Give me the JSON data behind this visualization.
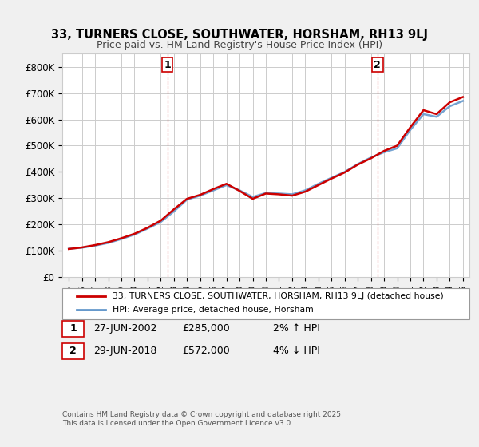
{
  "title1": "33, TURNERS CLOSE, SOUTHWATER, HORSHAM, RH13 9LJ",
  "title2": "Price paid vs. HM Land Registry's House Price Index (HPI)",
  "bg_color": "#f0f0f0",
  "plot_bg_color": "#ffffff",
  "grid_color": "#cccccc",
  "red_color": "#cc0000",
  "blue_color": "#6699cc",
  "legend_label_red": "33, TURNERS CLOSE, SOUTHWATER, HORSHAM, RH13 9LJ (detached house)",
  "legend_label_blue": "HPI: Average price, detached house, Horsham",
  "annotation1_label": "1",
  "annotation1_date": "27-JUN-2002",
  "annotation1_price": "£285,000",
  "annotation1_hpi": "2% ↑ HPI",
  "annotation2_label": "2",
  "annotation2_date": "29-JUN-2018",
  "annotation2_price": "£572,000",
  "annotation2_hpi": "4% ↓ HPI",
  "footer": "Contains HM Land Registry data © Crown copyright and database right 2025.\nThis data is licensed under the Open Government Licence v3.0.",
  "ylim": [
    0,
    850000
  ],
  "yticks": [
    0,
    100000,
    200000,
    300000,
    400000,
    500000,
    600000,
    700000,
    800000
  ],
  "ytick_labels": [
    "£0",
    "£100K",
    "£200K",
    "£300K",
    "£400K",
    "£500K",
    "£600K",
    "£700K",
    "£800K"
  ],
  "hpi_years": [
    1995,
    1996,
    1997,
    1998,
    1999,
    2000,
    2001,
    2002,
    2003,
    2004,
    2005,
    2006,
    2007,
    2008,
    2009,
    2010,
    2011,
    2012,
    2013,
    2014,
    2015,
    2016,
    2017,
    2018,
    2019,
    2020,
    2021,
    2022,
    2023,
    2024,
    2025
  ],
  "hpi_values": [
    108000,
    112000,
    120000,
    130000,
    145000,
    162000,
    185000,
    210000,
    250000,
    295000,
    310000,
    330000,
    350000,
    330000,
    305000,
    320000,
    318000,
    315000,
    330000,
    355000,
    378000,
    400000,
    430000,
    455000,
    475000,
    490000,
    560000,
    620000,
    610000,
    650000,
    670000
  ],
  "price_years": [
    1995,
    1996,
    1997,
    1998,
    1999,
    2000,
    2001,
    2002,
    2003,
    2004,
    2005,
    2006,
    2007,
    2008,
    2009,
    2010,
    2011,
    2012,
    2013,
    2014,
    2015,
    2016,
    2017,
    2018,
    2019,
    2020,
    2021,
    2022,
    2023,
    2024,
    2025
  ],
  "price_values": [
    107000,
    113000,
    122000,
    133000,
    148000,
    165000,
    188000,
    215000,
    258000,
    298000,
    313000,
    335000,
    355000,
    328000,
    298000,
    318000,
    315000,
    310000,
    325000,
    350000,
    375000,
    398000,
    428000,
    452000,
    480000,
    500000,
    570000,
    635000,
    620000,
    665000,
    685000
  ],
  "transaction1_year": 2002.5,
  "transaction1_price": 285000,
  "transaction2_year": 2018.5,
  "transaction2_price": 572000,
  "marker1_x": 2002.5,
  "marker2_x": 2018.5
}
